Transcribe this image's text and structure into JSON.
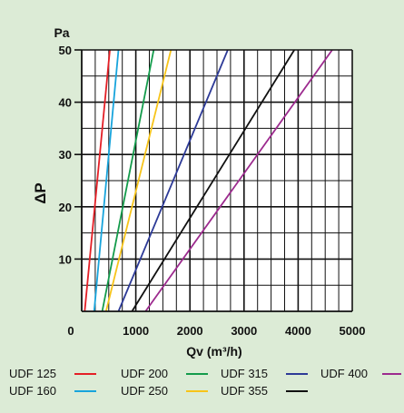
{
  "chart_data": {
    "type": "line",
    "ylabel": "ΔP",
    "y_unit": "Pa",
    "xlabel": "Qv (m³/h)",
    "xlim": [
      0,
      5000
    ],
    "ylim": [
      0,
      50
    ],
    "x_ticks": [
      0,
      1000,
      2000,
      3000,
      4000,
      5000
    ],
    "x_tick_labels": [
      "0",
      "1000",
      "2000",
      "3000",
      "4000",
      "5000"
    ],
    "y_ticks": [
      10,
      20,
      30,
      40,
      50
    ],
    "y_tick_labels": [
      "10",
      "20",
      "30",
      "40",
      "50"
    ],
    "grid": true,
    "grid_step_x": 250,
    "grid_step_y": 5,
    "legend_position": "bottom",
    "series": [
      {
        "name": "UDF 125",
        "color": "#e41f26",
        "points": [
          [
            55,
            0
          ],
          [
            520,
            50
          ]
        ]
      },
      {
        "name": "UDF 160",
        "color": "#18a4dc",
        "points": [
          [
            230,
            0
          ],
          [
            680,
            50
          ]
        ]
      },
      {
        "name": "UDF 200",
        "color": "#139b4b",
        "points": [
          [
            380,
            0
          ],
          [
            1330,
            50
          ]
        ]
      },
      {
        "name": "UDF 250",
        "color": "#f7c41a",
        "points": [
          [
            450,
            0
          ],
          [
            1650,
            50
          ]
        ]
      },
      {
        "name": "UDF 315",
        "color": "#2d3a97",
        "points": [
          [
            680,
            0
          ],
          [
            2700,
            50
          ]
        ]
      },
      {
        "name": "UDF 355",
        "color": "#111111",
        "points": [
          [
            930,
            0
          ],
          [
            3930,
            50
          ]
        ]
      },
      {
        "name": "UDF 400",
        "color": "#9c2a8e",
        "points": [
          [
            1180,
            0
          ],
          [
            4630,
            50
          ]
        ]
      }
    ]
  }
}
